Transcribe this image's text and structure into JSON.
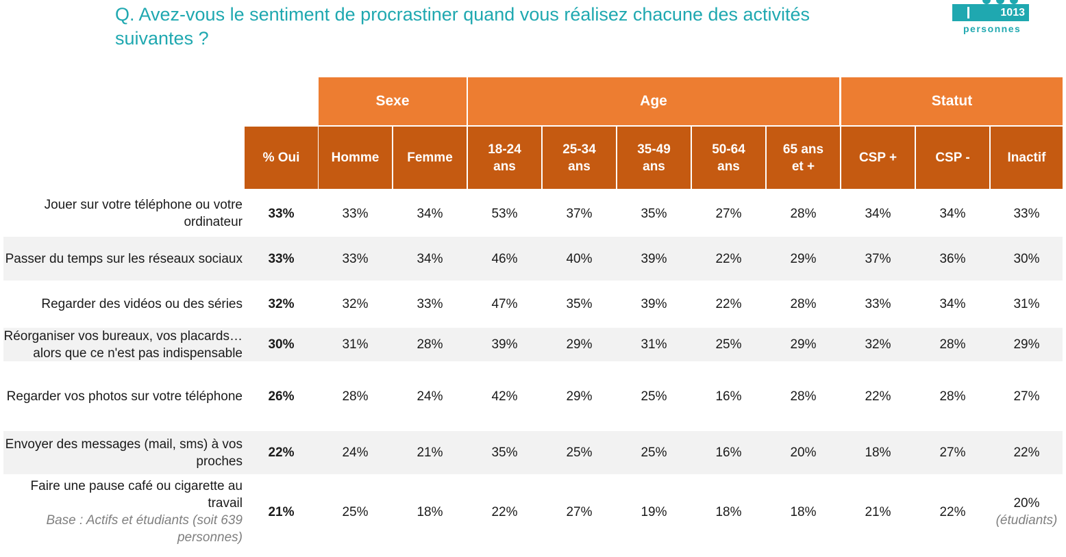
{
  "title": "Q. Avez-vous le sentiment de procrastiner quand vous réalisez chacune des activités suivantes ?",
  "badge": {
    "count": "1013",
    "label": "personnes",
    "icon": "people-icon"
  },
  "colors": {
    "title": "#1fa8b0",
    "group_header": "#ed7d31",
    "sub_header": "#c55a11",
    "band": "#f2f2f2"
  },
  "groups": [
    {
      "label": "Sexe"
    },
    {
      "label": "Age"
    },
    {
      "label": "Statut"
    }
  ],
  "columns": [
    {
      "label": "% Oui"
    },
    {
      "label": "Homme"
    },
    {
      "label": "Femme"
    },
    {
      "label": "18-24 ans"
    },
    {
      "label": "25-34 ans"
    },
    {
      "label": "35-49 ans"
    },
    {
      "label": "50-64 ans"
    },
    {
      "label": "65 ans et +"
    },
    {
      "label": "CSP +"
    },
    {
      "label": "CSP -"
    },
    {
      "label": "Inactif"
    }
  ],
  "rows": [
    {
      "label": "Jouer sur votre téléphone ou votre ordinateur",
      "note": "",
      "values": [
        "33%",
        "33%",
        "34%",
        "53%",
        "37%",
        "35%",
        "27%",
        "28%",
        "34%",
        "34%",
        "33%"
      ],
      "last_note": ""
    },
    {
      "label": "Passer du temps sur les réseaux sociaux",
      "note": "",
      "values": [
        "33%",
        "33%",
        "34%",
        "46%",
        "40%",
        "39%",
        "22%",
        "29%",
        "37%",
        "36%",
        "30%"
      ],
      "last_note": ""
    },
    {
      "label": "Regarder des vidéos ou des séries",
      "note": "",
      "values": [
        "32%",
        "32%",
        "33%",
        "47%",
        "35%",
        "39%",
        "22%",
        "28%",
        "33%",
        "34%",
        "31%"
      ],
      "last_note": ""
    },
    {
      "label": "Réorganiser vos bureaux, vos placards… alors que ce n'est pas indispensable",
      "note": "",
      "values": [
        "30%",
        "31%",
        "28%",
        "39%",
        "29%",
        "31%",
        "25%",
        "29%",
        "32%",
        "28%",
        "29%"
      ],
      "last_note": ""
    },
    {
      "label": "Regarder vos photos sur votre téléphone",
      "note": "",
      "values": [
        "26%",
        "28%",
        "24%",
        "42%",
        "29%",
        "25%",
        "16%",
        "28%",
        "22%",
        "28%",
        "27%"
      ],
      "last_note": ""
    },
    {
      "label": "Envoyer des messages (mail, sms) à vos proches",
      "note": "",
      "values": [
        "22%",
        "24%",
        "21%",
        "35%",
        "25%",
        "25%",
        "16%",
        "20%",
        "18%",
        "27%",
        "22%"
      ],
      "last_note": ""
    },
    {
      "label": "Faire une pause café ou cigarette au travail",
      "note": "Base : Actifs et étudiants (soit 639 personnes)",
      "values": [
        "21%",
        "25%",
        "18%",
        "22%",
        "27%",
        "19%",
        "18%",
        "18%",
        "21%",
        "22%",
        "20%"
      ],
      "last_note": "(étudiants)"
    }
  ]
}
